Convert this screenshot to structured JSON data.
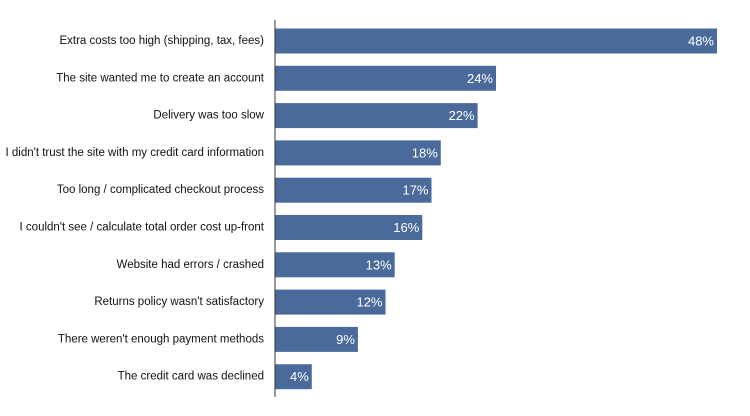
{
  "chart_data": {
    "type": "bar",
    "orientation": "horizontal",
    "categories": [
      "Extra costs too high (shipping, tax, fees)",
      "The site wanted me to create an account",
      "Delivery was too slow",
      "I didn't trust the site with my credit card information",
      "Too long / complicated checkout process",
      "I couldn't see / calculate total order cost up-front",
      "Website had errors / crashed",
      "Returns policy wasn't satisfactory",
      "There weren't enough payment methods",
      "The credit card was declined"
    ],
    "values": [
      48,
      24,
      22,
      18,
      17,
      16,
      13,
      12,
      9,
      4
    ],
    "value_labels": [
      "48%",
      "24%",
      "22%",
      "18%",
      "17%",
      "16%",
      "13%",
      "12%",
      "9%",
      "4%"
    ],
    "title": "",
    "xlabel": "",
    "ylabel": "",
    "xlim": [
      0,
      48
    ],
    "grid": false,
    "legend": "none",
    "colors": {
      "bar": "#4a6a9b",
      "axis": "#333333"
    }
  }
}
